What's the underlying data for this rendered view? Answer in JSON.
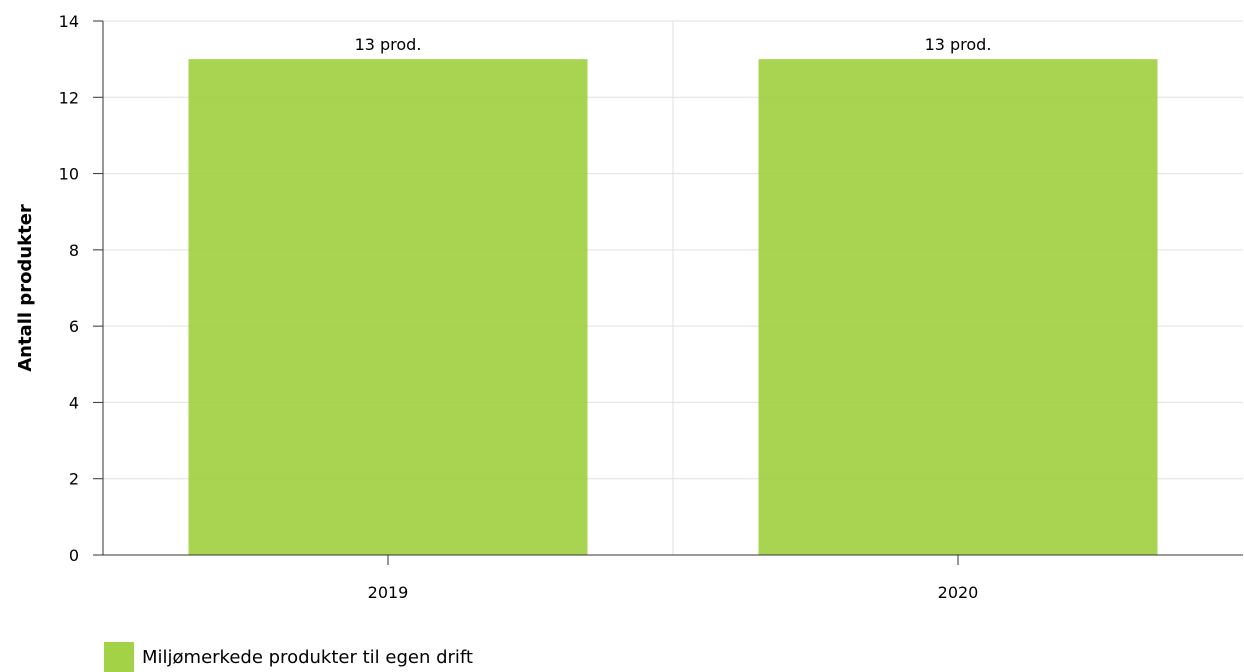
{
  "chart_data": {
    "type": "bar",
    "categories": [
      "2019",
      "2020"
    ],
    "series": [
      {
        "name": "Miljømerkede produkter til egen drift",
        "values": [
          13,
          13
        ],
        "color": "#9ACD32"
      }
    ],
    "data_labels": [
      "13 prod.",
      "13 prod."
    ],
    "ylabel": "Antall produkter",
    "xlabel": "",
    "ylim": [
      0,
      14
    ],
    "yticks": [
      0,
      2,
      4,
      6,
      8,
      10,
      12,
      14
    ],
    "grid": true,
    "legend_position": "bottom-left"
  }
}
